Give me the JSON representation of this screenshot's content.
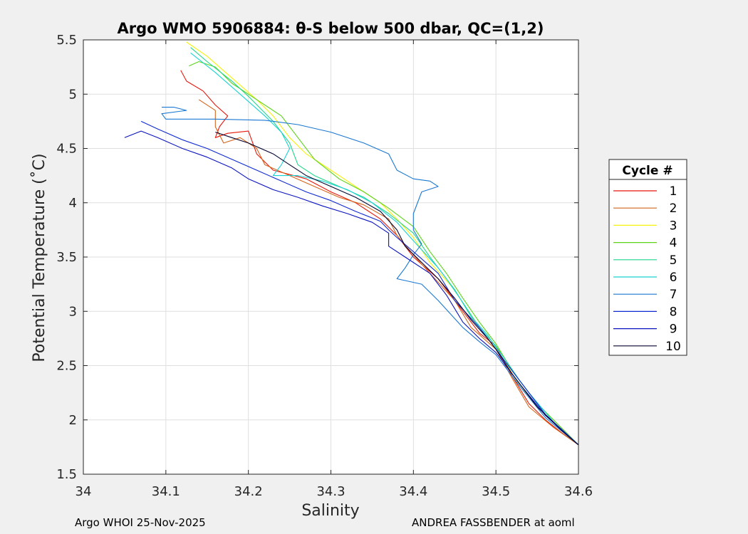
{
  "chart_data": {
    "type": "line",
    "title": "Argo WMO 5906884: θ-S below 500 dbar,  QC=(1,2)",
    "xlabel": "Salinity",
    "ylabel": "Potential Temperature (˚C)",
    "xlim": [
      34.0,
      34.6
    ],
    "ylim": [
      1.5,
      5.5
    ],
    "xticks": [
      "34",
      "34.1",
      "34.2",
      "34.3",
      "34.4",
      "34.5",
      "34.6"
    ],
    "yticks": [
      "1.5",
      "2",
      "2.5",
      "3",
      "3.5",
      "4",
      "4.5",
      "5",
      "5.5"
    ],
    "grid": true,
    "legend": {
      "title": "Cycle #",
      "placement": "outside-right"
    },
    "series": [
      {
        "name": "1",
        "color": "#e8170c",
        "points": [
          [
            34.118,
            5.22
          ],
          [
            34.125,
            5.12
          ],
          [
            34.145,
            5.03
          ],
          [
            34.16,
            4.9
          ],
          [
            34.175,
            4.8
          ],
          [
            34.165,
            4.7
          ],
          [
            34.16,
            4.6
          ],
          [
            34.175,
            4.64
          ],
          [
            34.2,
            4.66
          ],
          [
            34.21,
            4.45
          ],
          [
            34.23,
            4.3
          ],
          [
            34.27,
            4.22
          ],
          [
            34.3,
            4.1
          ],
          [
            34.33,
            4.0
          ],
          [
            34.36,
            3.85
          ],
          [
            34.38,
            3.7
          ],
          [
            34.4,
            3.5
          ],
          [
            34.43,
            3.3
          ],
          [
            34.46,
            3.0
          ],
          [
            34.48,
            2.8
          ],
          [
            34.5,
            2.68
          ],
          [
            34.52,
            2.4
          ],
          [
            34.54,
            2.15
          ],
          [
            34.56,
            2.0
          ],
          [
            34.58,
            1.88
          ],
          [
            34.6,
            1.77
          ]
        ]
      },
      {
        "name": "2",
        "color": "#d4651a",
        "points": [
          [
            34.14,
            4.95
          ],
          [
            34.16,
            4.85
          ],
          [
            34.16,
            4.7
          ],
          [
            34.17,
            4.55
          ],
          [
            34.19,
            4.6
          ],
          [
            34.21,
            4.5
          ],
          [
            34.22,
            4.35
          ],
          [
            34.25,
            4.25
          ],
          [
            34.28,
            4.15
          ],
          [
            34.31,
            4.05
          ],
          [
            34.34,
            3.98
          ],
          [
            34.37,
            3.85
          ],
          [
            34.38,
            3.7
          ],
          [
            34.4,
            3.52
          ],
          [
            34.42,
            3.35
          ],
          [
            34.45,
            3.1
          ],
          [
            34.47,
            2.85
          ],
          [
            34.5,
            2.65
          ],
          [
            34.52,
            2.38
          ],
          [
            34.54,
            2.12
          ],
          [
            34.57,
            1.93
          ],
          [
            34.6,
            1.77
          ]
        ]
      },
      {
        "name": "3",
        "color": "#f6f20a",
        "points": [
          [
            34.125,
            5.48
          ],
          [
            34.15,
            5.35
          ],
          [
            34.18,
            5.15
          ],
          [
            34.21,
            4.95
          ],
          [
            34.23,
            4.8
          ],
          [
            34.25,
            4.6
          ],
          [
            34.27,
            4.45
          ],
          [
            34.3,
            4.3
          ],
          [
            34.33,
            4.15
          ],
          [
            34.36,
            4.0
          ],
          [
            34.38,
            3.85
          ],
          [
            34.4,
            3.68
          ],
          [
            34.42,
            3.45
          ],
          [
            34.45,
            3.2
          ],
          [
            34.47,
            2.95
          ],
          [
            34.49,
            2.75
          ],
          [
            34.51,
            2.55
          ],
          [
            34.53,
            2.3
          ],
          [
            34.56,
            2.05
          ],
          [
            34.6,
            1.77
          ]
        ]
      },
      {
        "name": "4",
        "color": "#5dd41a",
        "points": [
          [
            34.128,
            5.26
          ],
          [
            34.14,
            5.3
          ],
          [
            34.16,
            5.25
          ],
          [
            34.18,
            5.1
          ],
          [
            34.21,
            4.95
          ],
          [
            34.24,
            4.8
          ],
          [
            34.26,
            4.6
          ],
          [
            34.28,
            4.4
          ],
          [
            34.31,
            4.22
          ],
          [
            34.34,
            4.1
          ],
          [
            34.37,
            3.95
          ],
          [
            34.4,
            3.78
          ],
          [
            34.42,
            3.55
          ],
          [
            34.44,
            3.35
          ],
          [
            34.46,
            3.12
          ],
          [
            34.48,
            2.9
          ],
          [
            34.5,
            2.7
          ],
          [
            34.52,
            2.45
          ],
          [
            34.55,
            2.15
          ],
          [
            34.6,
            1.77
          ]
        ]
      },
      {
        "name": "5",
        "color": "#1fd68c",
        "points": [
          [
            34.13,
            5.43
          ],
          [
            34.15,
            5.3
          ],
          [
            34.18,
            5.12
          ],
          [
            34.2,
            4.98
          ],
          [
            34.23,
            4.75
          ],
          [
            34.25,
            4.55
          ],
          [
            34.26,
            4.35
          ],
          [
            34.28,
            4.25
          ],
          [
            34.31,
            4.15
          ],
          [
            34.34,
            4.05
          ],
          [
            34.37,
            3.9
          ],
          [
            34.4,
            3.72
          ],
          [
            34.42,
            3.5
          ],
          [
            34.44,
            3.3
          ],
          [
            34.46,
            3.08
          ],
          [
            34.48,
            2.85
          ],
          [
            34.5,
            2.68
          ],
          [
            34.53,
            2.35
          ],
          [
            34.56,
            2.05
          ],
          [
            34.6,
            1.77
          ]
        ]
      },
      {
        "name": "6",
        "color": "#19d2d4",
        "points": [
          [
            34.13,
            5.38
          ],
          [
            34.16,
            5.2
          ],
          [
            34.19,
            5.0
          ],
          [
            34.22,
            4.8
          ],
          [
            34.24,
            4.65
          ],
          [
            34.25,
            4.5
          ],
          [
            34.24,
            4.35
          ],
          [
            34.23,
            4.25
          ],
          [
            34.26,
            4.25
          ],
          [
            34.29,
            4.2
          ],
          [
            34.32,
            4.12
          ],
          [
            34.35,
            4.0
          ],
          [
            34.38,
            3.82
          ],
          [
            34.4,
            3.65
          ],
          [
            34.43,
            3.4
          ],
          [
            34.45,
            3.2
          ],
          [
            34.47,
            2.95
          ],
          [
            34.49,
            2.78
          ],
          [
            34.51,
            2.55
          ],
          [
            34.54,
            2.25
          ],
          [
            34.57,
            1.98
          ],
          [
            34.6,
            1.77
          ]
        ]
      },
      {
        "name": "7",
        "color": "#1a78d2",
        "points": [
          [
            34.095,
            4.88
          ],
          [
            34.11,
            4.88
          ],
          [
            34.125,
            4.85
          ],
          [
            34.095,
            4.82
          ],
          [
            34.1,
            4.77
          ],
          [
            34.16,
            4.77
          ],
          [
            34.22,
            4.76
          ],
          [
            34.26,
            4.72
          ],
          [
            34.3,
            4.65
          ],
          [
            34.34,
            4.55
          ],
          [
            34.37,
            4.45
          ],
          [
            34.38,
            4.3
          ],
          [
            34.4,
            4.22
          ],
          [
            34.42,
            4.2
          ],
          [
            34.43,
            4.15
          ],
          [
            34.41,
            4.1
          ],
          [
            34.4,
            3.9
          ],
          [
            34.4,
            3.75
          ],
          [
            34.41,
            3.62
          ],
          [
            34.4,
            3.52
          ],
          [
            34.39,
            3.4
          ],
          [
            34.38,
            3.3
          ],
          [
            34.41,
            3.25
          ],
          [
            34.43,
            3.1
          ],
          [
            34.46,
            2.85
          ],
          [
            34.48,
            2.72
          ],
          [
            34.5,
            2.6
          ],
          [
            34.53,
            2.3
          ],
          [
            34.56,
            2.02
          ],
          [
            34.6,
            1.77
          ]
        ]
      },
      {
        "name": "8",
        "color": "#0f2ad2",
        "points": [
          [
            34.07,
            4.75
          ],
          [
            34.09,
            4.68
          ],
          [
            34.12,
            4.58
          ],
          [
            34.15,
            4.5
          ],
          [
            34.18,
            4.4
          ],
          [
            34.21,
            4.3
          ],
          [
            34.24,
            4.2
          ],
          [
            34.27,
            4.1
          ],
          [
            34.3,
            4.02
          ],
          [
            34.33,
            3.92
          ],
          [
            34.36,
            3.83
          ],
          [
            34.37,
            3.75
          ],
          [
            34.38,
            3.68
          ],
          [
            34.4,
            3.55
          ],
          [
            34.43,
            3.35
          ],
          [
            34.45,
            3.1
          ],
          [
            34.48,
            2.85
          ],
          [
            34.5,
            2.65
          ],
          [
            34.53,
            2.35
          ],
          [
            34.56,
            2.05
          ],
          [
            34.6,
            1.77
          ]
        ]
      },
      {
        "name": "9",
        "color": "#0a12c0",
        "points": [
          [
            34.05,
            4.6
          ],
          [
            34.07,
            4.66
          ],
          [
            34.09,
            4.6
          ],
          [
            34.12,
            4.5
          ],
          [
            34.15,
            4.42
          ],
          [
            34.18,
            4.32
          ],
          [
            34.2,
            4.22
          ],
          [
            34.23,
            4.12
          ],
          [
            34.26,
            4.05
          ],
          [
            34.29,
            3.97
          ],
          [
            34.32,
            3.9
          ],
          [
            34.35,
            3.82
          ],
          [
            34.37,
            3.72
          ],
          [
            34.37,
            3.6
          ],
          [
            34.39,
            3.5
          ],
          [
            34.42,
            3.35
          ],
          [
            34.44,
            3.15
          ],
          [
            34.46,
            2.9
          ],
          [
            34.48,
            2.75
          ],
          [
            34.5,
            2.62
          ],
          [
            34.53,
            2.32
          ],
          [
            34.56,
            2.04
          ],
          [
            34.6,
            1.77
          ]
        ]
      },
      {
        "name": "10",
        "color": "#050530",
        "points": [
          [
            34.16,
            4.65
          ],
          [
            34.18,
            4.6
          ],
          [
            34.2,
            4.55
          ],
          [
            34.23,
            4.45
          ],
          [
            34.25,
            4.35
          ],
          [
            34.27,
            4.25
          ],
          [
            34.3,
            4.15
          ],
          [
            34.33,
            4.05
          ],
          [
            34.36,
            3.92
          ],
          [
            34.38,
            3.75
          ],
          [
            34.39,
            3.6
          ],
          [
            34.41,
            3.45
          ],
          [
            34.43,
            3.3
          ],
          [
            34.45,
            3.12
          ],
          [
            34.47,
            2.92
          ],
          [
            34.49,
            2.75
          ],
          [
            34.5,
            2.65
          ],
          [
            34.52,
            2.42
          ],
          [
            34.55,
            2.12
          ],
          [
            34.58,
            1.9
          ],
          [
            34.6,
            1.77
          ]
        ]
      }
    ]
  },
  "footer": {
    "left": "Argo WHOI 25-Nov-2025",
    "right": "ANDREA FASSBENDER at aoml"
  }
}
